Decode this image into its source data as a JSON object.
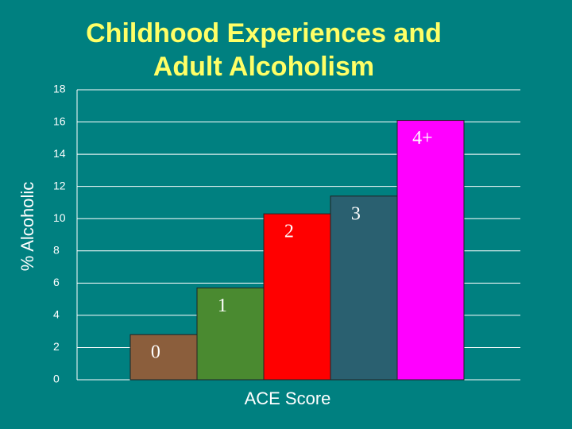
{
  "chart_data": {
    "type": "bar",
    "title": [
      "Childhood Experiences and",
      "Adult Alcoholism"
    ],
    "x_label": "ACE Score",
    "y_label": "% Alcoholic",
    "categories": [
      "0",
      "1",
      "2",
      "3",
      "4+"
    ],
    "values": [
      2.8,
      5.7,
      10.3,
      11.4,
      16.1
    ],
    "colors": [
      "#8b5e3c",
      "#4a8a30",
      "#ff0000",
      "#2a6070",
      "#ff00ff"
    ],
    "ylim": [
      0,
      18
    ],
    "yticks": [
      0,
      2,
      4,
      6,
      8,
      10,
      12,
      14,
      16,
      18
    ],
    "grid": true
  }
}
